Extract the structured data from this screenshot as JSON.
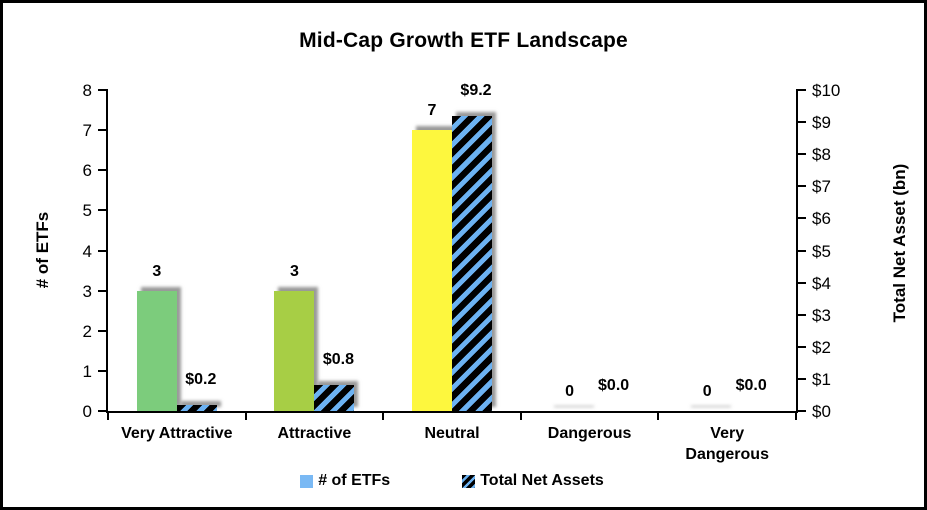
{
  "chart_data": {
    "type": "bar",
    "title": "Mid-Cap Growth ETF Landscape",
    "categories": [
      "Very Attractive",
      "Attractive",
      "Neutral",
      "Dangerous",
      "Very\nDangerous"
    ],
    "series": [
      {
        "name": "# of ETFs",
        "axis": "left",
        "values": [
          3,
          3,
          7,
          0,
          0
        ],
        "data_labels": [
          "3",
          "3",
          "7",
          "0",
          "0"
        ],
        "bar_colors": [
          "#7CCC7C",
          "#A7CE45",
          "#FDF73E",
          "#FDF73E",
          "#FDF73E"
        ],
        "legend_swatch_color": "#7AB9F4"
      },
      {
        "name": "Total Net Assets",
        "axis": "right",
        "values": [
          0.2,
          0.8,
          9.2,
          0.0,
          0.0
        ],
        "data_labels": [
          "$0.2",
          "$0.8",
          "$9.2",
          "$0.0",
          "$0.0"
        ],
        "pattern": {
          "type": "diagonal-stripes",
          "stripe_color": "#6CB2F2",
          "background": "#000000"
        }
      }
    ],
    "left_axis": {
      "label": "# of ETFs",
      "min": 0,
      "max": 8,
      "tick_labels": [
        "0",
        "1",
        "2",
        "3",
        "4",
        "5",
        "6",
        "7",
        "8"
      ]
    },
    "right_axis": {
      "label": "Total Net Asset (bn)",
      "min": 0,
      "max": 10,
      "tick_labels": [
        "$0",
        "$1",
        "$2",
        "$3",
        "$4",
        "$5",
        "$6",
        "$7",
        "$8",
        "$9",
        "$10"
      ]
    },
    "legend_position": "bottom",
    "grid": false,
    "bar_shadow": true,
    "shadow_color": "#878787"
  }
}
